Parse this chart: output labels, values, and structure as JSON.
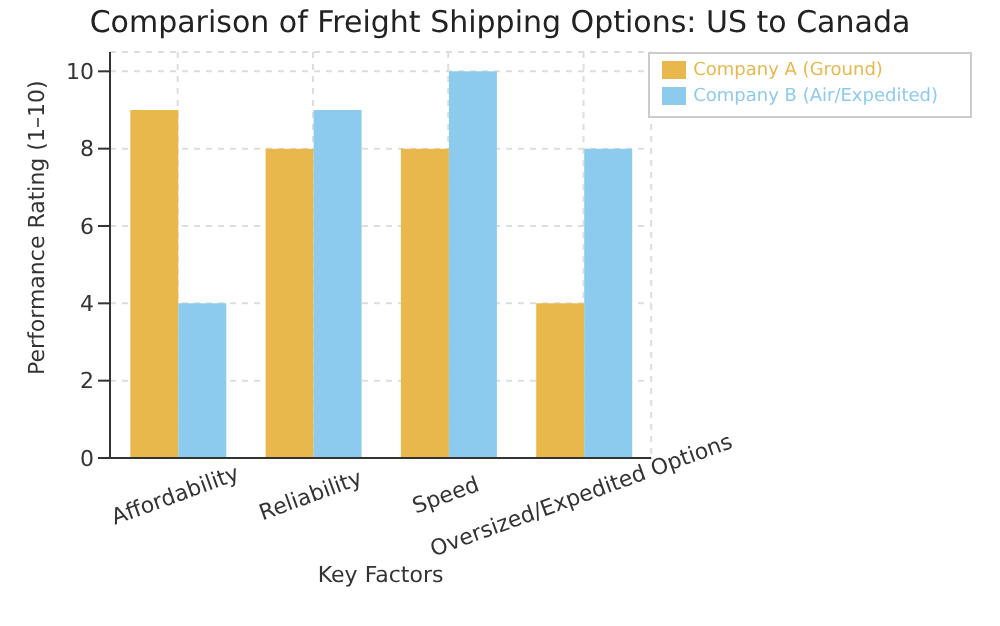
{
  "chart_data": {
    "type": "bar",
    "title": "Comparison of Freight Shipping Options: US to Canada",
    "xlabel": "Key Factors",
    "ylabel": "Performance Rating (1–10)",
    "categories": [
      "Affordability",
      "Reliability",
      "Speed",
      "Oversized/Expedited Options"
    ],
    "series": [
      {
        "name": "Company A (Ground)",
        "color": "#e9b84c",
        "values": [
          9,
          8,
          8,
          4
        ]
      },
      {
        "name": "Company B (Air/Expedited)",
        "color": "#8ccbee",
        "values": [
          4,
          9,
          10,
          8
        ]
      }
    ],
    "ylim": [
      0,
      10.5
    ],
    "yticks": [
      0,
      2,
      4,
      6,
      8,
      10
    ],
    "grid": true,
    "legend": "top right"
  }
}
